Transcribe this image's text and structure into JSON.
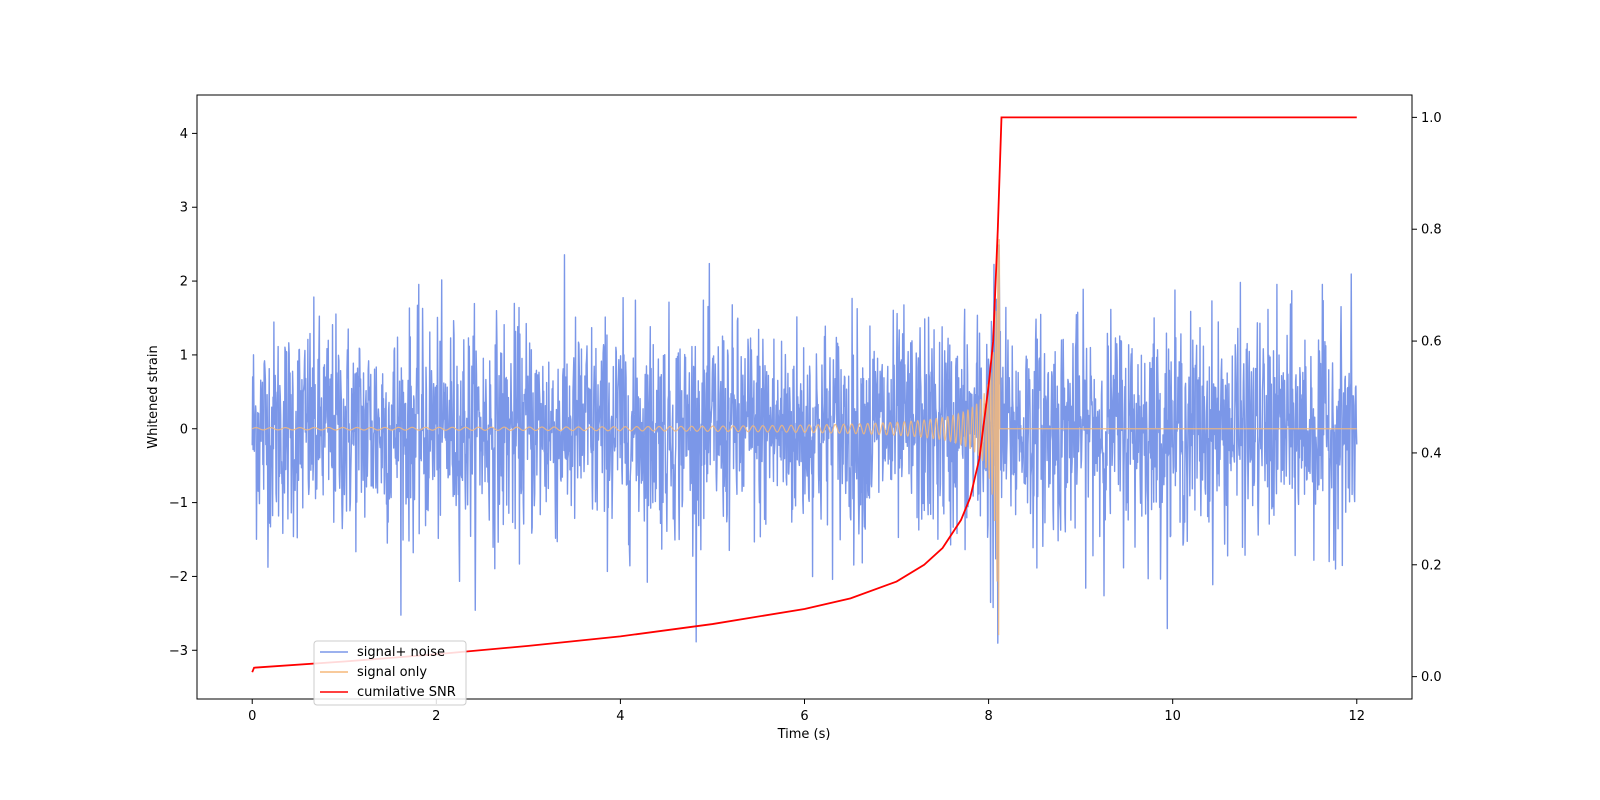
{
  "chart_data": {
    "type": "line",
    "title": "",
    "xlabel": "Time (s)",
    "ylabel": "Whitened strain",
    "y2label": "",
    "xlim": [
      -0.6,
      12.6
    ],
    "ylim": [
      -3.66,
      4.52
    ],
    "y2lim": [
      -0.04,
      1.04
    ],
    "x_ticks": [
      0,
      2,
      4,
      6,
      8,
      10,
      12
    ],
    "y_ticks": [
      -3,
      -2,
      -1,
      0,
      1,
      2,
      3,
      4
    ],
    "y2_ticks": [
      0.0,
      0.2,
      0.4,
      0.6,
      0.8,
      1.0
    ],
    "x_tick_labels": [
      "0",
      "2",
      "4",
      "6",
      "8",
      "10",
      "12"
    ],
    "y_tick_labels": [
      "−3",
      "−2",
      "−1",
      "0",
      "1",
      "2",
      "3",
      "4"
    ],
    "y2_tick_labels": [
      "0.0",
      "0.2",
      "0.4",
      "0.6",
      "0.8",
      "1.0"
    ],
    "grid": false,
    "legend_position": "lower-left",
    "series": [
      {
        "name": "signal+ noise",
        "color": "#7b97e8",
        "axis": "left",
        "kind": "noisy-strain",
        "x_range": [
          0,
          12
        ],
        "typical_amplitude": 1.4,
        "max_value": 2.85,
        "min_value": -3.28
      },
      {
        "name": "signal only",
        "color": "#f5b87a",
        "axis": "left",
        "kind": "chirp",
        "x_range": [
          0,
          12
        ],
        "merger_time": 8.12,
        "peak_amplitude": 2.8,
        "post_merger_value": 0
      },
      {
        "name": "cumilative SNR",
        "color": "#ff0000",
        "axis": "right",
        "x": [
          0,
          0.02,
          1,
          2,
          3,
          4,
          5,
          6,
          6.5,
          7,
          7.3,
          7.5,
          7.7,
          7.8,
          7.9,
          8.0,
          8.05,
          8.1,
          8.14,
          12
        ],
        "values": [
          0.008,
          0.016,
          0.027,
          0.04,
          0.055,
          0.072,
          0.094,
          0.121,
          0.14,
          0.17,
          0.2,
          0.23,
          0.28,
          0.32,
          0.39,
          0.52,
          0.6,
          0.8,
          1.0,
          1.0
        ]
      }
    ]
  }
}
